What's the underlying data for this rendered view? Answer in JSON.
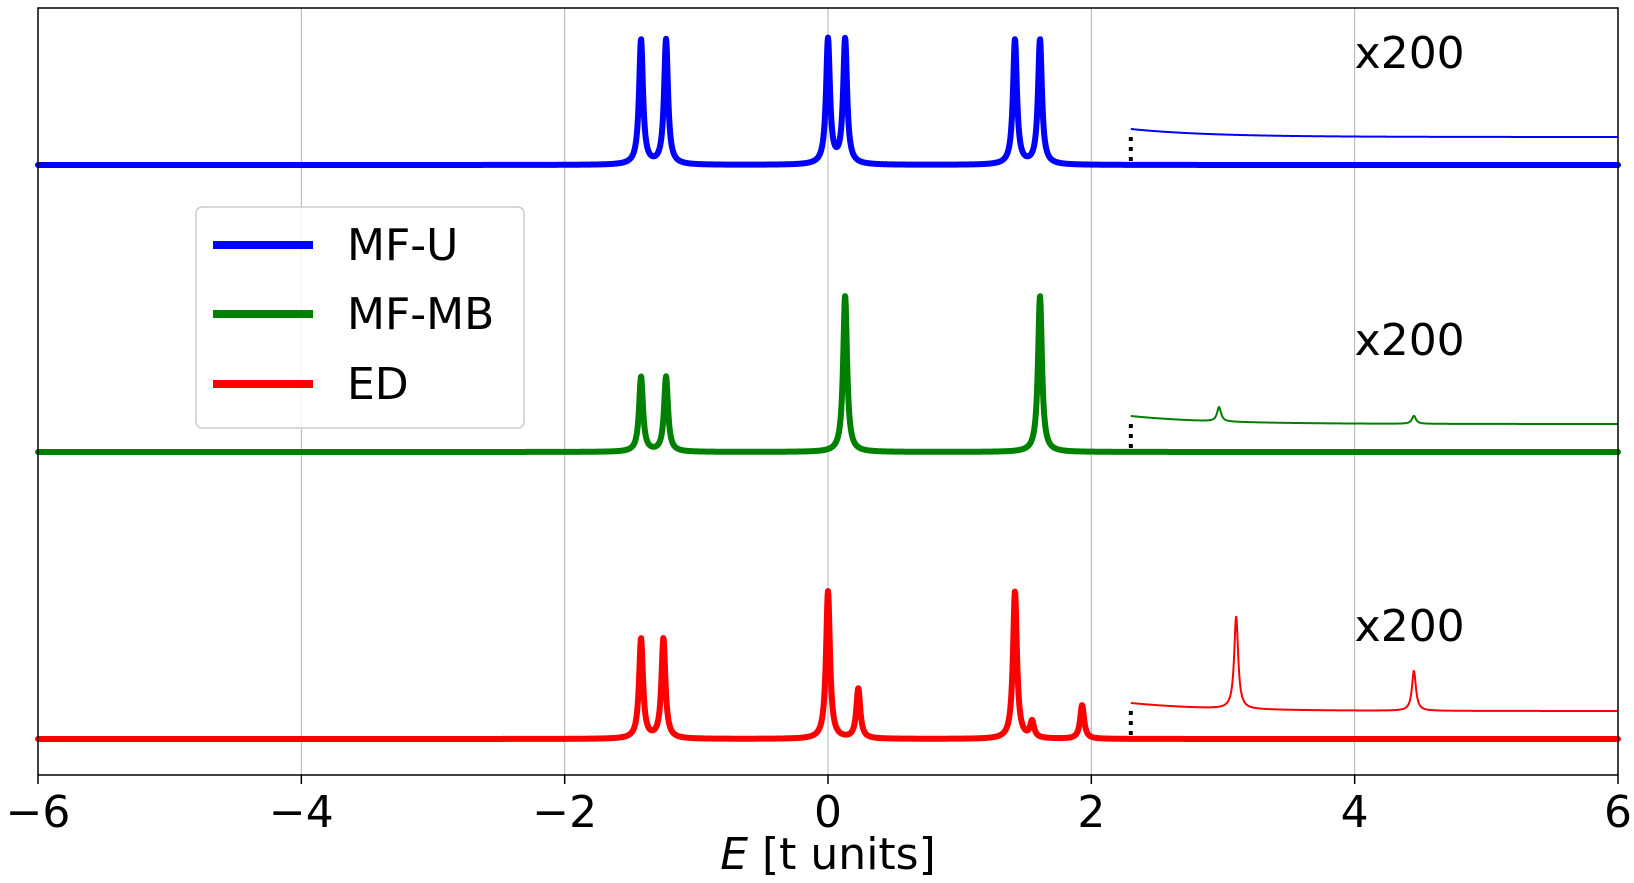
{
  "chart_data": {
    "type": "line",
    "title": "",
    "xlabel_italic": "E",
    "xlabel_rest": " [t units]",
    "xlim": [
      -6,
      6
    ],
    "xticks": [
      -6,
      -4,
      -2,
      0,
      2,
      4,
      6
    ],
    "xtick_labels": [
      "−6",
      "−4",
      "−2",
      "0",
      "2",
      "4",
      "6"
    ],
    "grid": "vertical",
    "legend_placement": "upper-left",
    "zoom_start": 2.3,
    "zoom_label": "x200",
    "series": [
      {
        "name": "MF-U",
        "color": "#0000ff",
        "peaks": [
          {
            "x": -1.42,
            "h": 1.0
          },
          {
            "x": -1.23,
            "h": 1.0
          },
          {
            "x": 0.0,
            "h": 1.0
          },
          {
            "x": 0.13,
            "h": 1.0
          },
          {
            "x": 1.42,
            "h": 1.0
          },
          {
            "x": 1.61,
            "h": 1.0
          }
        ],
        "zoom_peaks": []
      },
      {
        "name": "MF-MB",
        "color": "#008000",
        "peaks": [
          {
            "x": -1.42,
            "h": 0.6
          },
          {
            "x": -1.23,
            "h": 0.6
          },
          {
            "x": 0.13,
            "h": 1.25
          },
          {
            "x": 1.61,
            "h": 1.25
          }
        ],
        "zoom_peaks": [
          {
            "x": 2.97,
            "h": 0.09
          },
          {
            "x": 4.45,
            "h": 0.05
          }
        ]
      },
      {
        "name": "ED",
        "color": "#ff0000",
        "peaks": [
          {
            "x": -1.42,
            "h": 0.8
          },
          {
            "x": -1.25,
            "h": 0.8
          },
          {
            "x": 0.0,
            "h": 1.18
          },
          {
            "x": 0.23,
            "h": 0.4
          },
          {
            "x": 1.42,
            "h": 1.18
          },
          {
            "x": 1.55,
            "h": 0.13
          },
          {
            "x": 1.93,
            "h": 0.27
          }
        ],
        "zoom_peaks": [
          {
            "x": 3.1,
            "h": 0.58
          },
          {
            "x": 4.45,
            "h": 0.25
          }
        ]
      }
    ]
  }
}
